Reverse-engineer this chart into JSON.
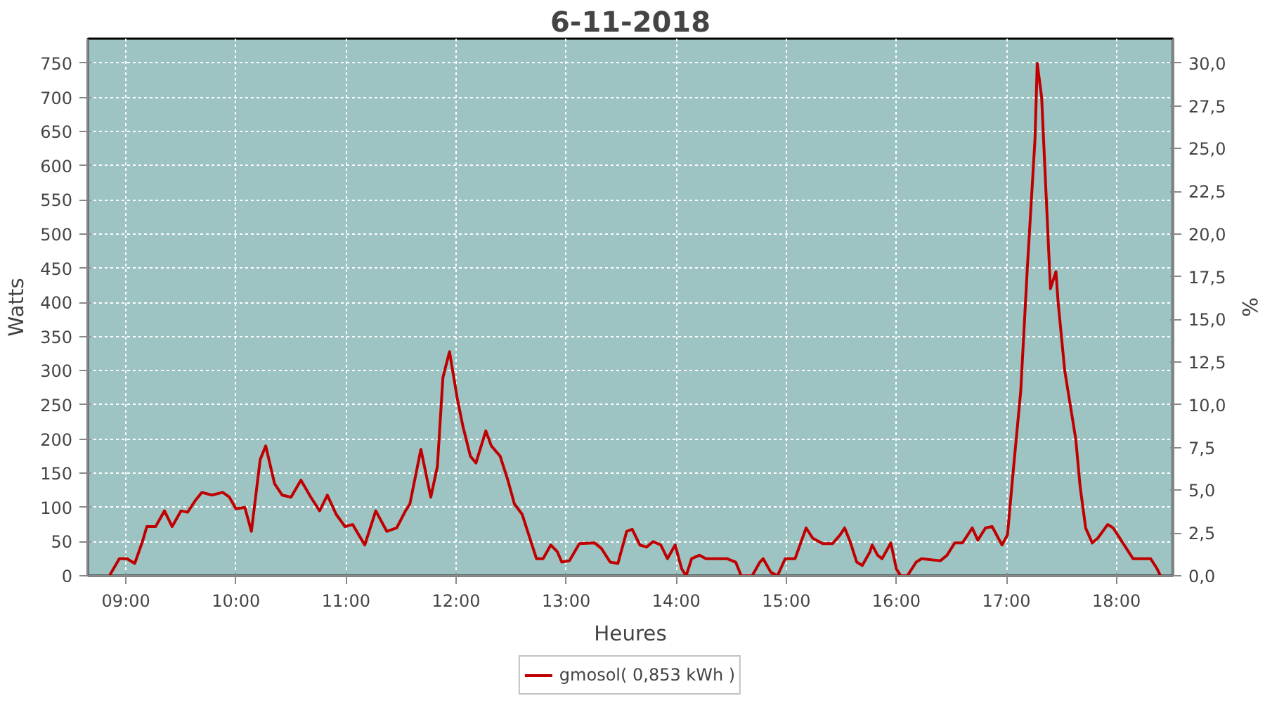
{
  "chart_data": {
    "type": "line",
    "title": "6-11-2018",
    "xlabel": "Heures",
    "ylabel": "Watts",
    "y2label": "%",
    "xlim": [
      8.654,
      18.513
    ],
    "xticks": [
      {
        "value": 9,
        "label": "09:00"
      },
      {
        "value": 10,
        "label": "10:00"
      },
      {
        "value": 11,
        "label": "11:00"
      },
      {
        "value": 12,
        "label": "12:00"
      },
      {
        "value": 13,
        "label": "13:00"
      },
      {
        "value": 14,
        "label": "14:00"
      },
      {
        "value": 15,
        "label": "15:00"
      },
      {
        "value": 16,
        "label": "16:00"
      },
      {
        "value": 17,
        "label": "17:00"
      },
      {
        "value": 18,
        "label": "18:00"
      }
    ],
    "ylim": [
      0,
      786
    ],
    "yticks": [
      0,
      50,
      100,
      150,
      200,
      250,
      300,
      350,
      400,
      450,
      500,
      550,
      600,
      650,
      700,
      750
    ],
    "y2lim": [
      0,
      31.44
    ],
    "y2ticks": [
      {
        "value": 0,
        "label": "0,0"
      },
      {
        "value": 2.5,
        "label": "2,5"
      },
      {
        "value": 5,
        "label": "5,0"
      },
      {
        "value": 7.5,
        "label": "7,5"
      },
      {
        "value": 10,
        "label": "10,0"
      },
      {
        "value": 12.5,
        "label": "12,5"
      },
      {
        "value": 15,
        "label": "15,0"
      },
      {
        "value": 17.5,
        "label": "17,5"
      },
      {
        "value": 20,
        "label": "20,0"
      },
      {
        "value": 22.5,
        "label": "22,5"
      },
      {
        "value": 25,
        "label": "25,0"
      },
      {
        "value": 27.5,
        "label": "27,5"
      },
      {
        "value": 30,
        "label": "30,0"
      }
    ],
    "grid": true,
    "legend": "bottom",
    "marker": "none",
    "line_style": "solid",
    "x": [
      8.85,
      8.94,
      9.01,
      9.08,
      9.15,
      9.19,
      9.27,
      9.35,
      9.42,
      9.5,
      9.56,
      9.63,
      9.69,
      9.78,
      9.88,
      9.94,
      10.0,
      10.08,
      10.14,
      10.22,
      10.27,
      10.35,
      10.42,
      10.5,
      10.59,
      10.68,
      10.76,
      10.83,
      10.91,
      10.99,
      11.06,
      11.17,
      11.27,
      11.37,
      11.46,
      11.54,
      11.58,
      11.68,
      11.77,
      11.83,
      11.88,
      11.94,
      12.01,
      12.06,
      12.13,
      12.18,
      12.27,
      12.32,
      12.4,
      12.47,
      12.53,
      12.6,
      12.68,
      12.73,
      12.79,
      12.86,
      12.92,
      12.96,
      13.03,
      13.12,
      13.26,
      13.32,
      13.4,
      13.47,
      13.55,
      13.6,
      13.67,
      13.73,
      13.79,
      13.86,
      13.92,
      13.99,
      14.05,
      14.09,
      14.14,
      14.21,
      14.27,
      14.46,
      14.54,
      14.59,
      14.69,
      14.76,
      14.79,
      14.86,
      14.92,
      14.99,
      15.08,
      15.18,
      15.24,
      15.33,
      15.42,
      15.49,
      15.53,
      15.58,
      15.64,
      15.69,
      15.76,
      15.78,
      15.83,
      15.87,
      15.95,
      16.0,
      16.04,
      16.1,
      16.18,
      16.23,
      16.4,
      16.46,
      16.53,
      16.6,
      16.69,
      16.74,
      16.81,
      16.87,
      16.96,
      17.01,
      17.06,
      17.13,
      17.19,
      17.26,
      17.28,
      17.32,
      17.36,
      17.4,
      17.45,
      17.47,
      17.53,
      17.58,
      17.63,
      17.67,
      17.72,
      17.78,
      17.83,
      17.92,
      17.97,
      18.09,
      18.15,
      18.24,
      18.31,
      18.37,
      18.4
    ],
    "series": [
      {
        "name": "gmosol( 0,853 kWh )",
        "color": "#c00000",
        "values": [
          0,
          25,
          25,
          18,
          50,
          72,
          72,
          95,
          72,
          95,
          93,
          110,
          122,
          118,
          122,
          115,
          98,
          100,
          65,
          170,
          190,
          135,
          118,
          115,
          140,
          115,
          95,
          118,
          90,
          72,
          75,
          45,
          95,
          65,
          70,
          95,
          105,
          185,
          115,
          160,
          290,
          328,
          260,
          220,
          175,
          165,
          212,
          190,
          175,
          140,
          105,
          90,
          50,
          25,
          25,
          45,
          35,
          20,
          22,
          47,
          48,
          40,
          20,
          18,
          65,
          68,
          45,
          42,
          50,
          45,
          25,
          45,
          10,
          0,
          25,
          30,
          25,
          25,
          20,
          0,
          0,
          20,
          25,
          5,
          0,
          25,
          25,
          70,
          55,
          47,
          47,
          60,
          70,
          50,
          20,
          15,
          35,
          45,
          30,
          25,
          48,
          10,
          0,
          0,
          20,
          25,
          22,
          30,
          48,
          48,
          70,
          52,
          70,
          72,
          45,
          60,
          150,
          270,
          450,
          640,
          750,
          700,
          560,
          420,
          445,
          400,
          300,
          250,
          200,
          130,
          70,
          48,
          55,
          75,
          70,
          40,
          25,
          25,
          25,
          10,
          0
        ]
      }
    ]
  }
}
